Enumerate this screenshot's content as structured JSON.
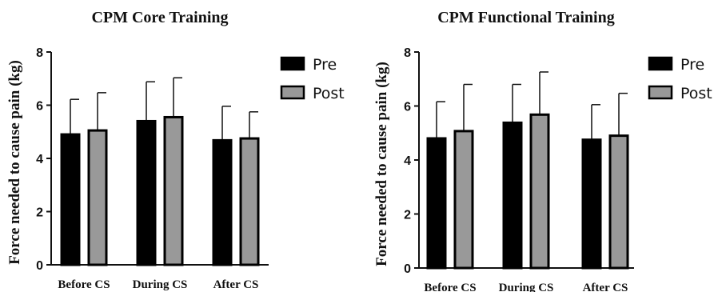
{
  "chart_data": [
    {
      "type": "bar",
      "title": "CPM Core Training",
      "ylabel": "Force needed to cause pain (kg)",
      "xlabel": "",
      "categories": [
        "Before CS",
        "During CS",
        "After CS"
      ],
      "ylim": [
        0,
        8
      ],
      "yticks": [
        0,
        2,
        4,
        6,
        8
      ],
      "error_bars": true,
      "legend_position": "right",
      "series": [
        {
          "name": "Pre",
          "color": "#000000",
          "values": [
            4.9,
            5.4,
            4.68
          ],
          "errors": [
            1.32,
            1.48,
            1.28
          ]
        },
        {
          "name": "Post",
          "color": "#999999",
          "values": [
            5.05,
            5.55,
            4.75
          ],
          "errors": [
            1.42,
            1.48,
            1.0
          ]
        }
      ]
    },
    {
      "type": "bar",
      "title": "CPM Functional Training",
      "ylabel": "Force needed to cause pain (kg)",
      "xlabel": "",
      "categories": [
        "Before CS",
        "During CS",
        "After CS"
      ],
      "ylim": [
        0,
        8
      ],
      "yticks": [
        0,
        2,
        4,
        6,
        8
      ],
      "error_bars": true,
      "legend_position": "right",
      "series": [
        {
          "name": "Pre",
          "color": "#000000",
          "values": [
            4.8,
            5.38,
            4.75
          ],
          "errors": [
            1.36,
            1.42,
            1.3
          ]
        },
        {
          "name": "Post",
          "color": "#999999",
          "values": [
            5.07,
            5.68,
            4.9
          ],
          "errors": [
            1.73,
            1.58,
            1.57
          ]
        }
      ]
    }
  ]
}
